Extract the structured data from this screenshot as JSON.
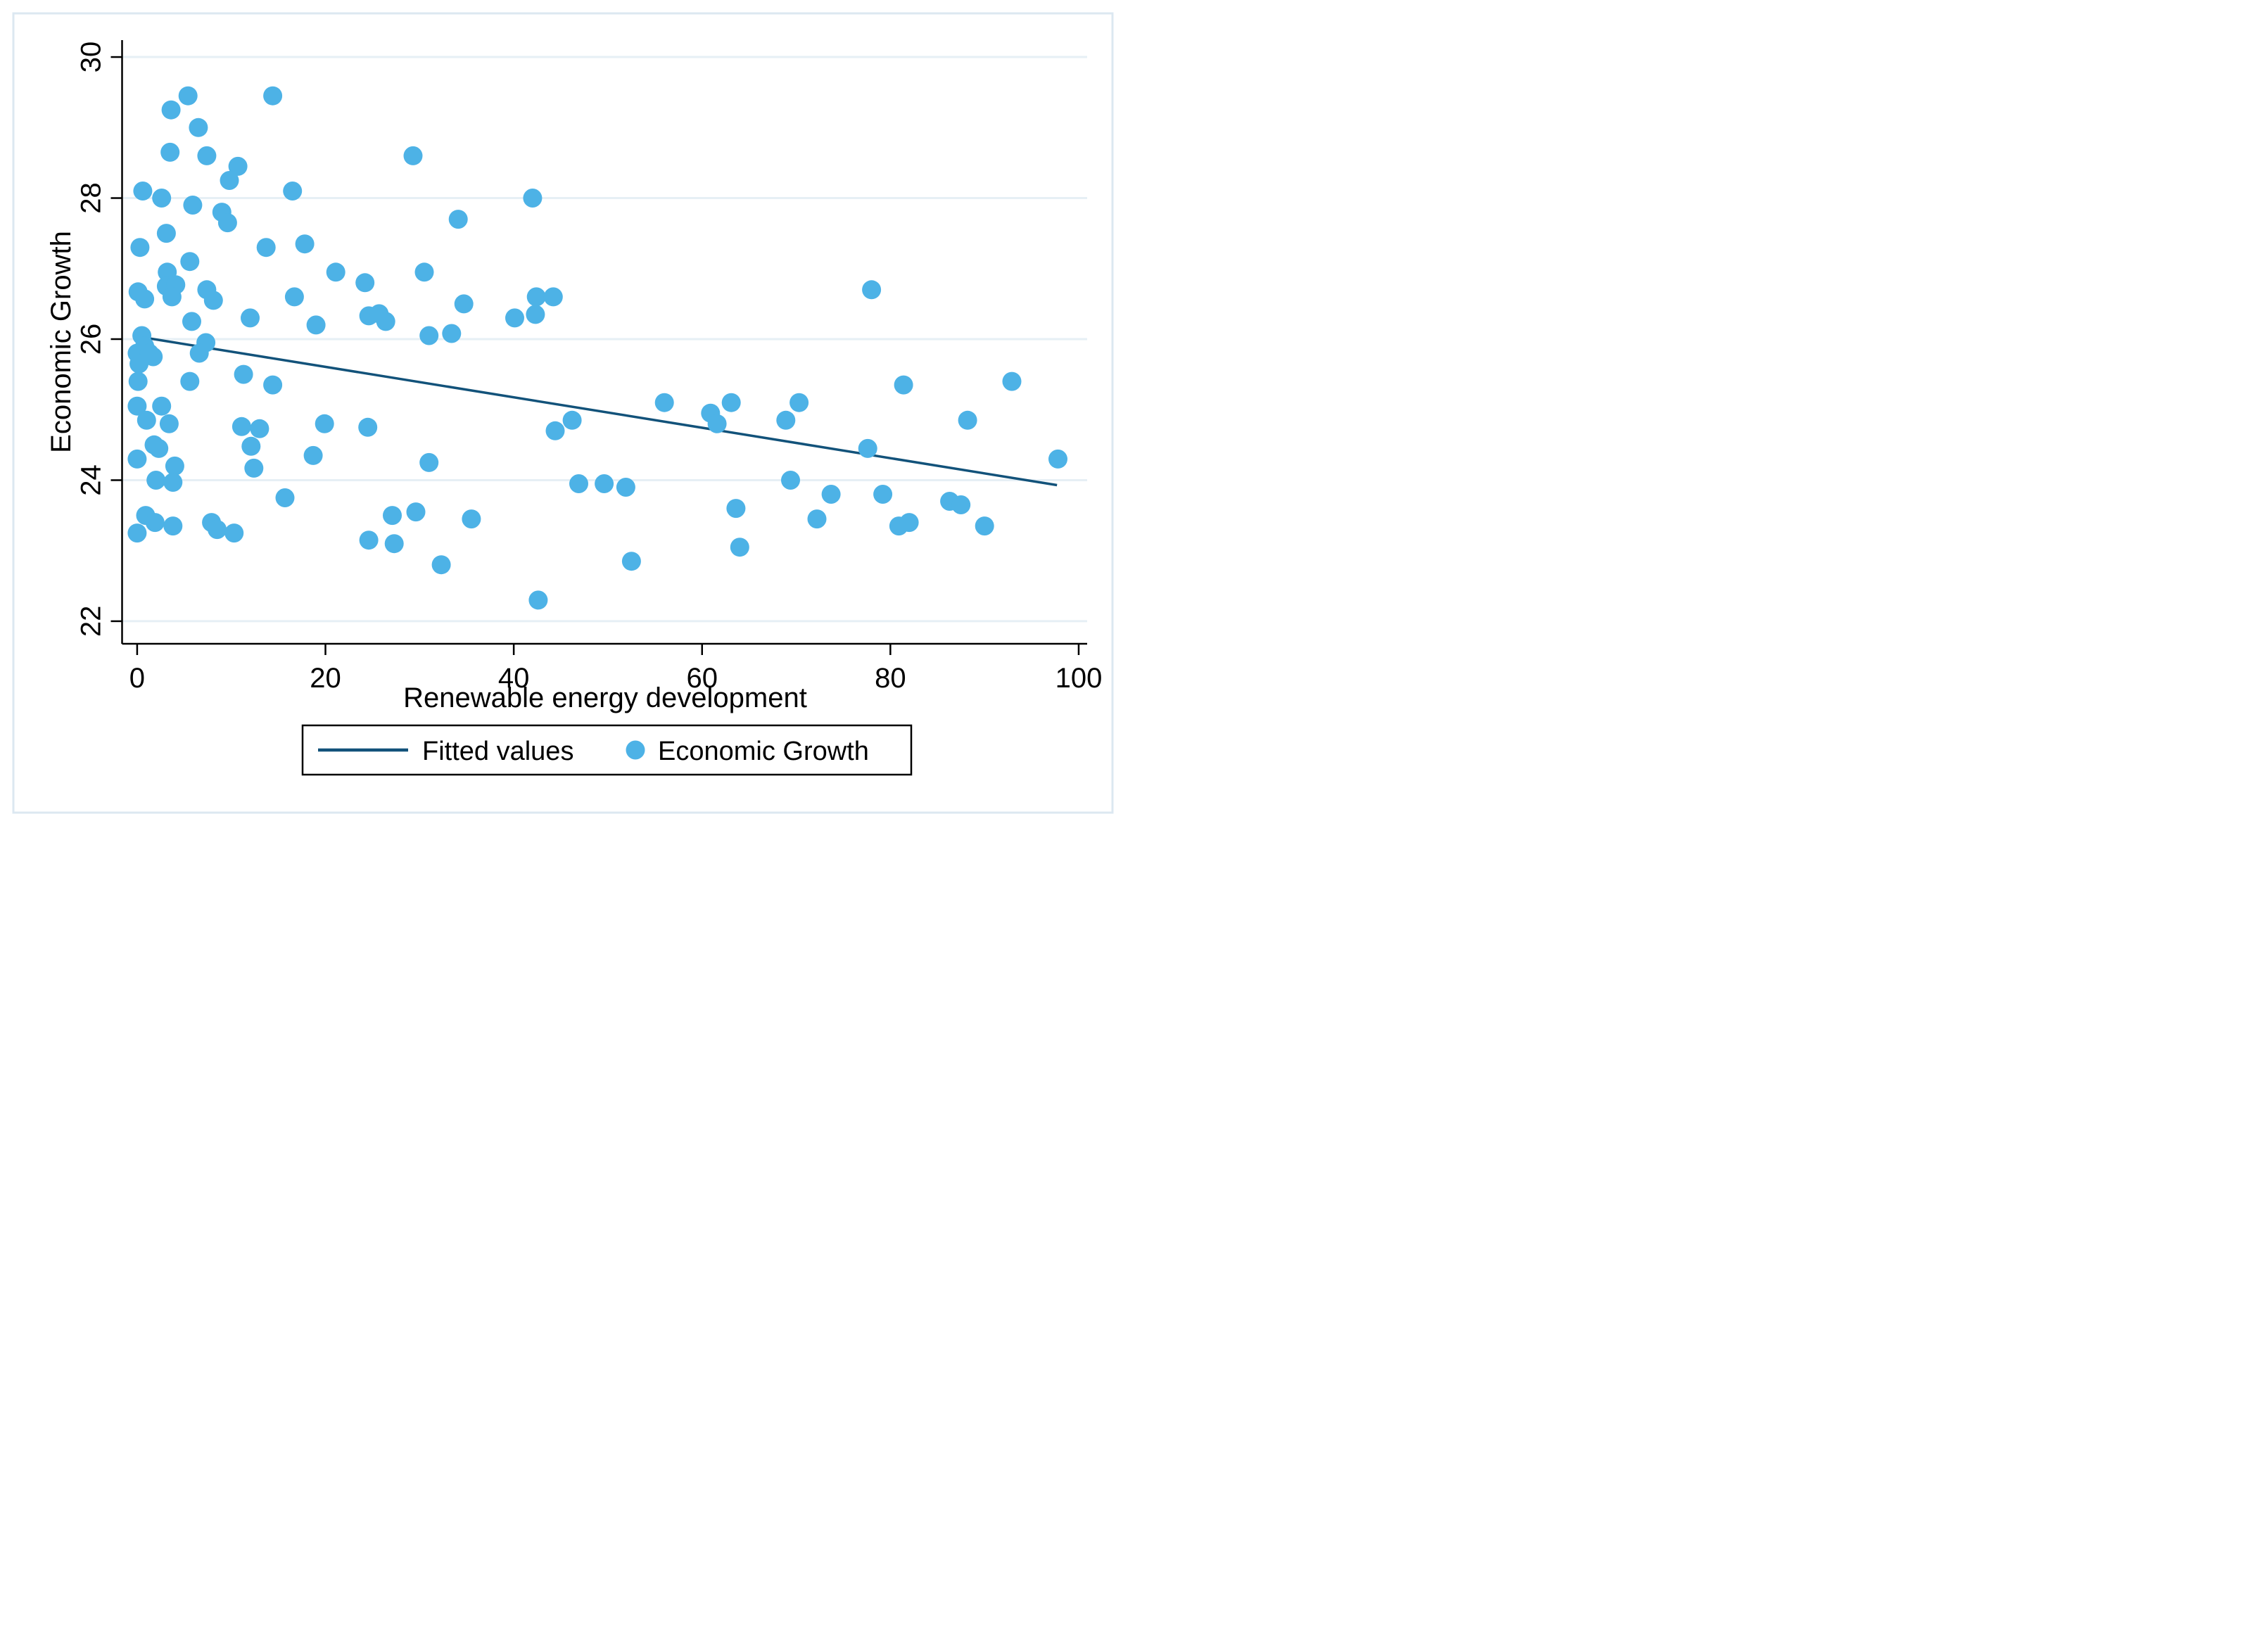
{
  "chart_data": {
    "type": "scatter",
    "title": "",
    "xlabel": "Renewable energy development",
    "ylabel": "Economic Growth",
    "x_ticks": [
      0,
      20,
      40,
      60,
      80,
      100
    ],
    "y_ticks": [
      22,
      24,
      26,
      28,
      30
    ],
    "xlim": [
      -1.6,
      100.9
    ],
    "ylim": [
      21.68,
      30.24
    ],
    "grid": "horizontal-only",
    "legend": {
      "position": "bottom-center",
      "entries": [
        {
          "label": "Fitted values",
          "type": "line"
        },
        {
          "label": "Economic Growth",
          "type": "marker"
        }
      ]
    },
    "series": [
      {
        "name": "Fitted values",
        "type": "line",
        "color": "#12527a",
        "points": [
          [
            1.3,
            26.01
          ],
          [
            97.7,
            23.93
          ]
        ]
      },
      {
        "name": "Economic Growth",
        "type": "scatter",
        "color": "#4db2e6",
        "points": [
          [
            3.6,
            29.25
          ],
          [
            5.4,
            29.45
          ],
          [
            6.5,
            29.0
          ],
          [
            14.4,
            29.45
          ],
          [
            3.5,
            28.65
          ],
          [
            7.4,
            28.6
          ],
          [
            10.7,
            28.45
          ],
          [
            9.8,
            28.25
          ],
          [
            29.3,
            28.6
          ],
          [
            0.6,
            28.1
          ],
          [
            2.6,
            28.0
          ],
          [
            16.5,
            28.1
          ],
          [
            42.0,
            28.0
          ],
          [
            5.9,
            27.9
          ],
          [
            9.0,
            27.8
          ],
          [
            9.6,
            27.65
          ],
          [
            34.1,
            27.7
          ],
          [
            3.1,
            27.5
          ],
          [
            0.3,
            27.3
          ],
          [
            13.7,
            27.3
          ],
          [
            17.8,
            27.35
          ],
          [
            5.6,
            27.1
          ],
          [
            3.2,
            26.95
          ],
          [
            30.5,
            26.95
          ],
          [
            21.1,
            26.95
          ],
          [
            3.1,
            26.75
          ],
          [
            4.1,
            26.77
          ],
          [
            0.1,
            26.67
          ],
          [
            3.7,
            26.6
          ],
          [
            7.4,
            26.7
          ],
          [
            0.8,
            26.57
          ],
          [
            8.1,
            26.55
          ],
          [
            16.7,
            26.6
          ],
          [
            24.2,
            26.8
          ],
          [
            34.7,
            26.5
          ],
          [
            42.4,
            26.6
          ],
          [
            44.2,
            26.6
          ],
          [
            78.0,
            26.7
          ],
          [
            40.1,
            26.3
          ],
          [
            42.3,
            26.35
          ],
          [
            5.8,
            26.25
          ],
          [
            12.0,
            26.3
          ],
          [
            19.0,
            26.2
          ],
          [
            24.6,
            26.33
          ],
          [
            25.7,
            26.36
          ],
          [
            26.4,
            26.25
          ],
          [
            31.0,
            26.05
          ],
          [
            33.4,
            26.08
          ],
          [
            0.5,
            26.05
          ],
          [
            0.8,
            25.9
          ],
          [
            0.0,
            25.8
          ],
          [
            1.3,
            25.8
          ],
          [
            1.7,
            25.75
          ],
          [
            0.2,
            25.65
          ],
          [
            7.3,
            25.95
          ],
          [
            6.6,
            25.8
          ],
          [
            0.1,
            25.4
          ],
          [
            5.6,
            25.4
          ],
          [
            11.3,
            25.5
          ],
          [
            14.4,
            25.35
          ],
          [
            0.0,
            25.05
          ],
          [
            2.6,
            25.05
          ],
          [
            1.0,
            24.85
          ],
          [
            3.4,
            24.8
          ],
          [
            1.8,
            24.5
          ],
          [
            2.3,
            24.45
          ],
          [
            0.0,
            24.3
          ],
          [
            4.0,
            24.2
          ],
          [
            11.1,
            24.76
          ],
          [
            13.0,
            24.73
          ],
          [
            12.1,
            24.48
          ],
          [
            12.4,
            24.17
          ],
          [
            19.9,
            24.8
          ],
          [
            24.5,
            24.75
          ],
          [
            18.7,
            24.35
          ],
          [
            31.0,
            24.25
          ],
          [
            15.7,
            23.75
          ],
          [
            2.0,
            24.0
          ],
          [
            3.8,
            23.97
          ],
          [
            0.9,
            23.5
          ],
          [
            1.9,
            23.4
          ],
          [
            3.8,
            23.35
          ],
          [
            0.0,
            23.25
          ],
          [
            7.9,
            23.4
          ],
          [
            8.5,
            23.3
          ],
          [
            10.3,
            23.25
          ],
          [
            27.1,
            23.5
          ],
          [
            29.6,
            23.55
          ],
          [
            24.6,
            23.15
          ],
          [
            27.3,
            23.1
          ],
          [
            32.3,
            22.8
          ],
          [
            35.5,
            23.45
          ],
          [
            42.6,
            22.3
          ],
          [
            44.4,
            24.7
          ],
          [
            46.2,
            24.85
          ],
          [
            56.0,
            25.1
          ],
          [
            60.9,
            24.95
          ],
          [
            61.6,
            24.8
          ],
          [
            63.1,
            25.1
          ],
          [
            46.9,
            23.95
          ],
          [
            49.6,
            23.95
          ],
          [
            51.9,
            23.9
          ],
          [
            63.6,
            23.6
          ],
          [
            64.0,
            23.05
          ],
          [
            52.5,
            22.85
          ],
          [
            70.3,
            25.1
          ],
          [
            68.9,
            24.85
          ],
          [
            81.4,
            25.35
          ],
          [
            92.9,
            25.4
          ],
          [
            88.2,
            24.85
          ],
          [
            77.6,
            24.45
          ],
          [
            97.8,
            24.3
          ],
          [
            69.4,
            24.0
          ],
          [
            73.7,
            23.8
          ],
          [
            79.2,
            23.8
          ],
          [
            86.3,
            23.7
          ],
          [
            87.5,
            23.65
          ],
          [
            72.2,
            23.45
          ],
          [
            80.9,
            23.35
          ],
          [
            82.0,
            23.4
          ],
          [
            90.0,
            23.35
          ]
        ]
      }
    ]
  },
  "colors": {
    "scatter_dot": "#4db2e6",
    "fit_line": "#12527a",
    "gridline": "#e6eff5",
    "axis_frame": "#000000",
    "outer_border": "#dce8f1",
    "background": "#ffffff"
  },
  "marker": {
    "radius": 13.5
  }
}
